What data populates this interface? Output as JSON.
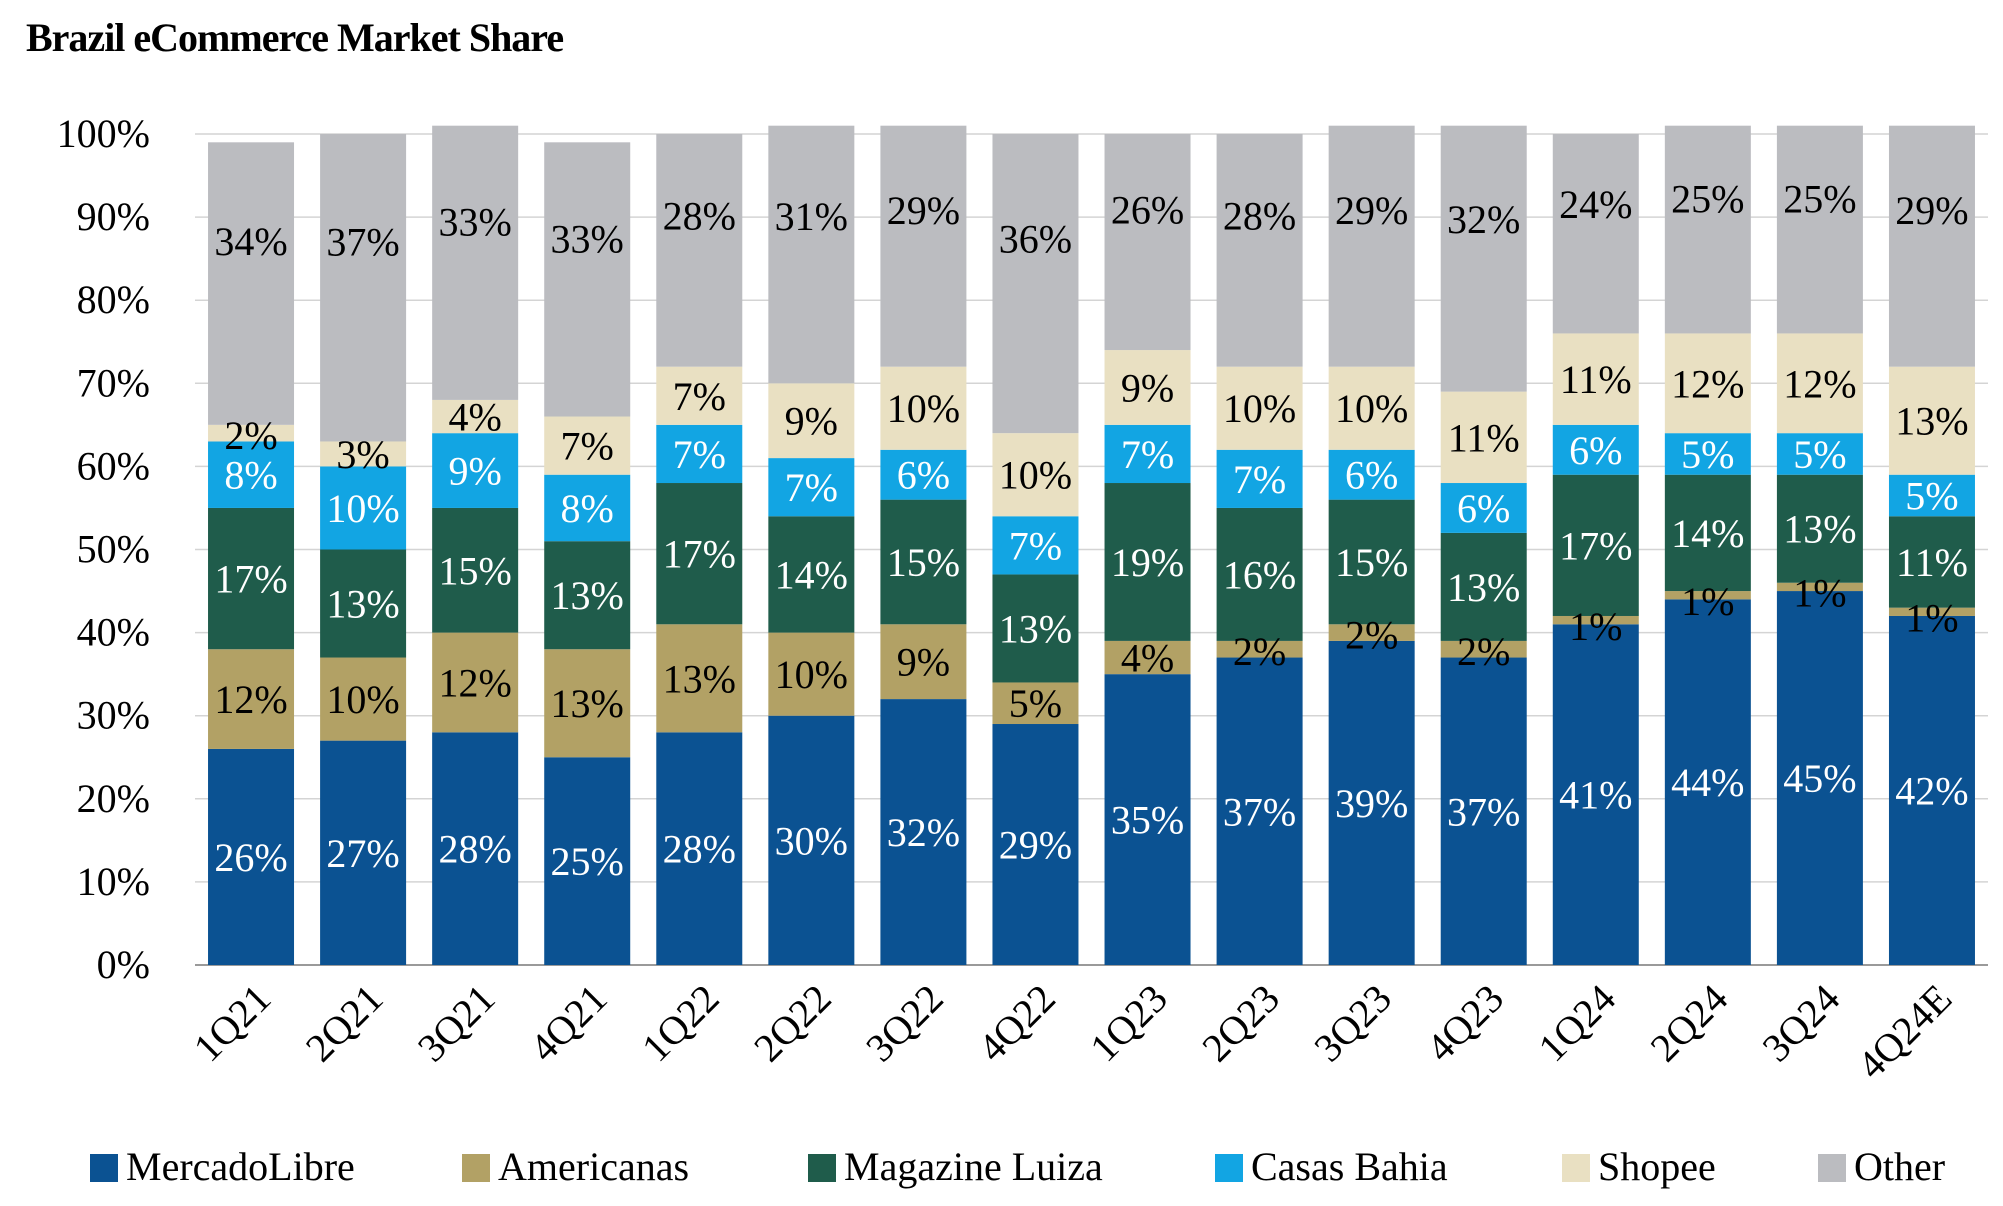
{
  "chart_data": {
    "type": "bar",
    "stacked": true,
    "title": "Brazil eCommerce Market Share",
    "xlabel": "",
    "ylabel": "",
    "ylim": [
      0,
      100
    ],
    "y_ticks": [
      "0%",
      "10%",
      "20%",
      "30%",
      "40%",
      "50%",
      "60%",
      "70%",
      "80%",
      "90%",
      "100%"
    ],
    "grid": "horizontal",
    "legend_position": "bottom",
    "categories": [
      "1Q21",
      "2Q21",
      "3Q21",
      "4Q21",
      "1Q22",
      "2Q22",
      "3Q22",
      "4Q22",
      "1Q23",
      "2Q23",
      "3Q23",
      "4Q23",
      "1Q24",
      "2Q24",
      "3Q24",
      "4Q24E"
    ],
    "series": [
      {
        "name": "MercadoLibre",
        "color": "#0B5292",
        "label_color": "#ffffff",
        "values": [
          26,
          27,
          28,
          25,
          28,
          30,
          32,
          29,
          35,
          37,
          39,
          37,
          41,
          44,
          45,
          42
        ],
        "labels": [
          "26%",
          "27%",
          "28%",
          "25%",
          "28%",
          "30%",
          "32%",
          "29%",
          "35%",
          "37%",
          "39%",
          "37%",
          "41%",
          "44%",
          "45%",
          "42%"
        ]
      },
      {
        "name": "Americanas",
        "color": "#B2A165",
        "label_color": "#000000",
        "values": [
          12,
          10,
          12,
          13,
          13,
          10,
          9,
          5,
          4,
          2,
          2,
          2,
          1,
          1,
          1,
          1
        ],
        "labels": [
          "12%",
          "10%",
          "12%",
          "13%",
          "13%",
          "10%",
          "9%",
          "5%",
          "4%",
          "2%",
          "2%",
          "2%",
          "1%",
          "1%",
          "1%",
          "1%"
        ]
      },
      {
        "name": "Magazine Luiza",
        "color": "#1F5C4B",
        "label_color": "#ffffff",
        "values": [
          17,
          13,
          15,
          13,
          17,
          14,
          15,
          13,
          19,
          16,
          15,
          13,
          17,
          14,
          13,
          11
        ],
        "labels": [
          "17%",
          "13%",
          "15%",
          "13%",
          "17%",
          "14%",
          "15%",
          "13%",
          "19%",
          "16%",
          "15%",
          "13%",
          "17%",
          "14%",
          "13%",
          "11%"
        ]
      },
      {
        "name": "Casas Bahia",
        "color": "#12A5E3",
        "label_color": "#ffffff",
        "values": [
          8,
          10,
          9,
          8,
          7,
          7,
          6,
          7,
          7,
          7,
          6,
          6,
          6,
          5,
          5,
          5
        ],
        "labels": [
          "8%",
          "10%",
          "9%",
          "8%",
          "7%",
          "7%",
          "6%",
          "7%",
          "7%",
          "7%",
          "6%",
          "6%",
          "6%",
          "5%",
          "5%",
          "5%"
        ]
      },
      {
        "name": "Shopee",
        "color": "#E9E0C2",
        "label_color": "#000000",
        "values": [
          2,
          3,
          4,
          7,
          7,
          9,
          10,
          10,
          9,
          10,
          10,
          11,
          11,
          12,
          12,
          13
        ],
        "labels": [
          "2%",
          "3%",
          "4%",
          "7%",
          "7%",
          "9%",
          "10%",
          "10%",
          "9%",
          "10%",
          "10%",
          "11%",
          "11%",
          "12%",
          "12%",
          "13%"
        ]
      },
      {
        "name": "Other",
        "color": "#BBBCC0",
        "label_color": "#000000",
        "values": [
          34,
          37,
          33,
          33,
          28,
          31,
          29,
          36,
          26,
          28,
          29,
          32,
          24,
          25,
          25,
          29
        ],
        "labels": [
          "34%",
          "37%",
          "33%",
          "33%",
          "28%",
          "31%",
          "29%",
          "36%",
          "26%",
          "28%",
          "29%",
          "32%",
          "24%",
          "25%",
          "25%",
          "29%"
        ]
      }
    ]
  }
}
